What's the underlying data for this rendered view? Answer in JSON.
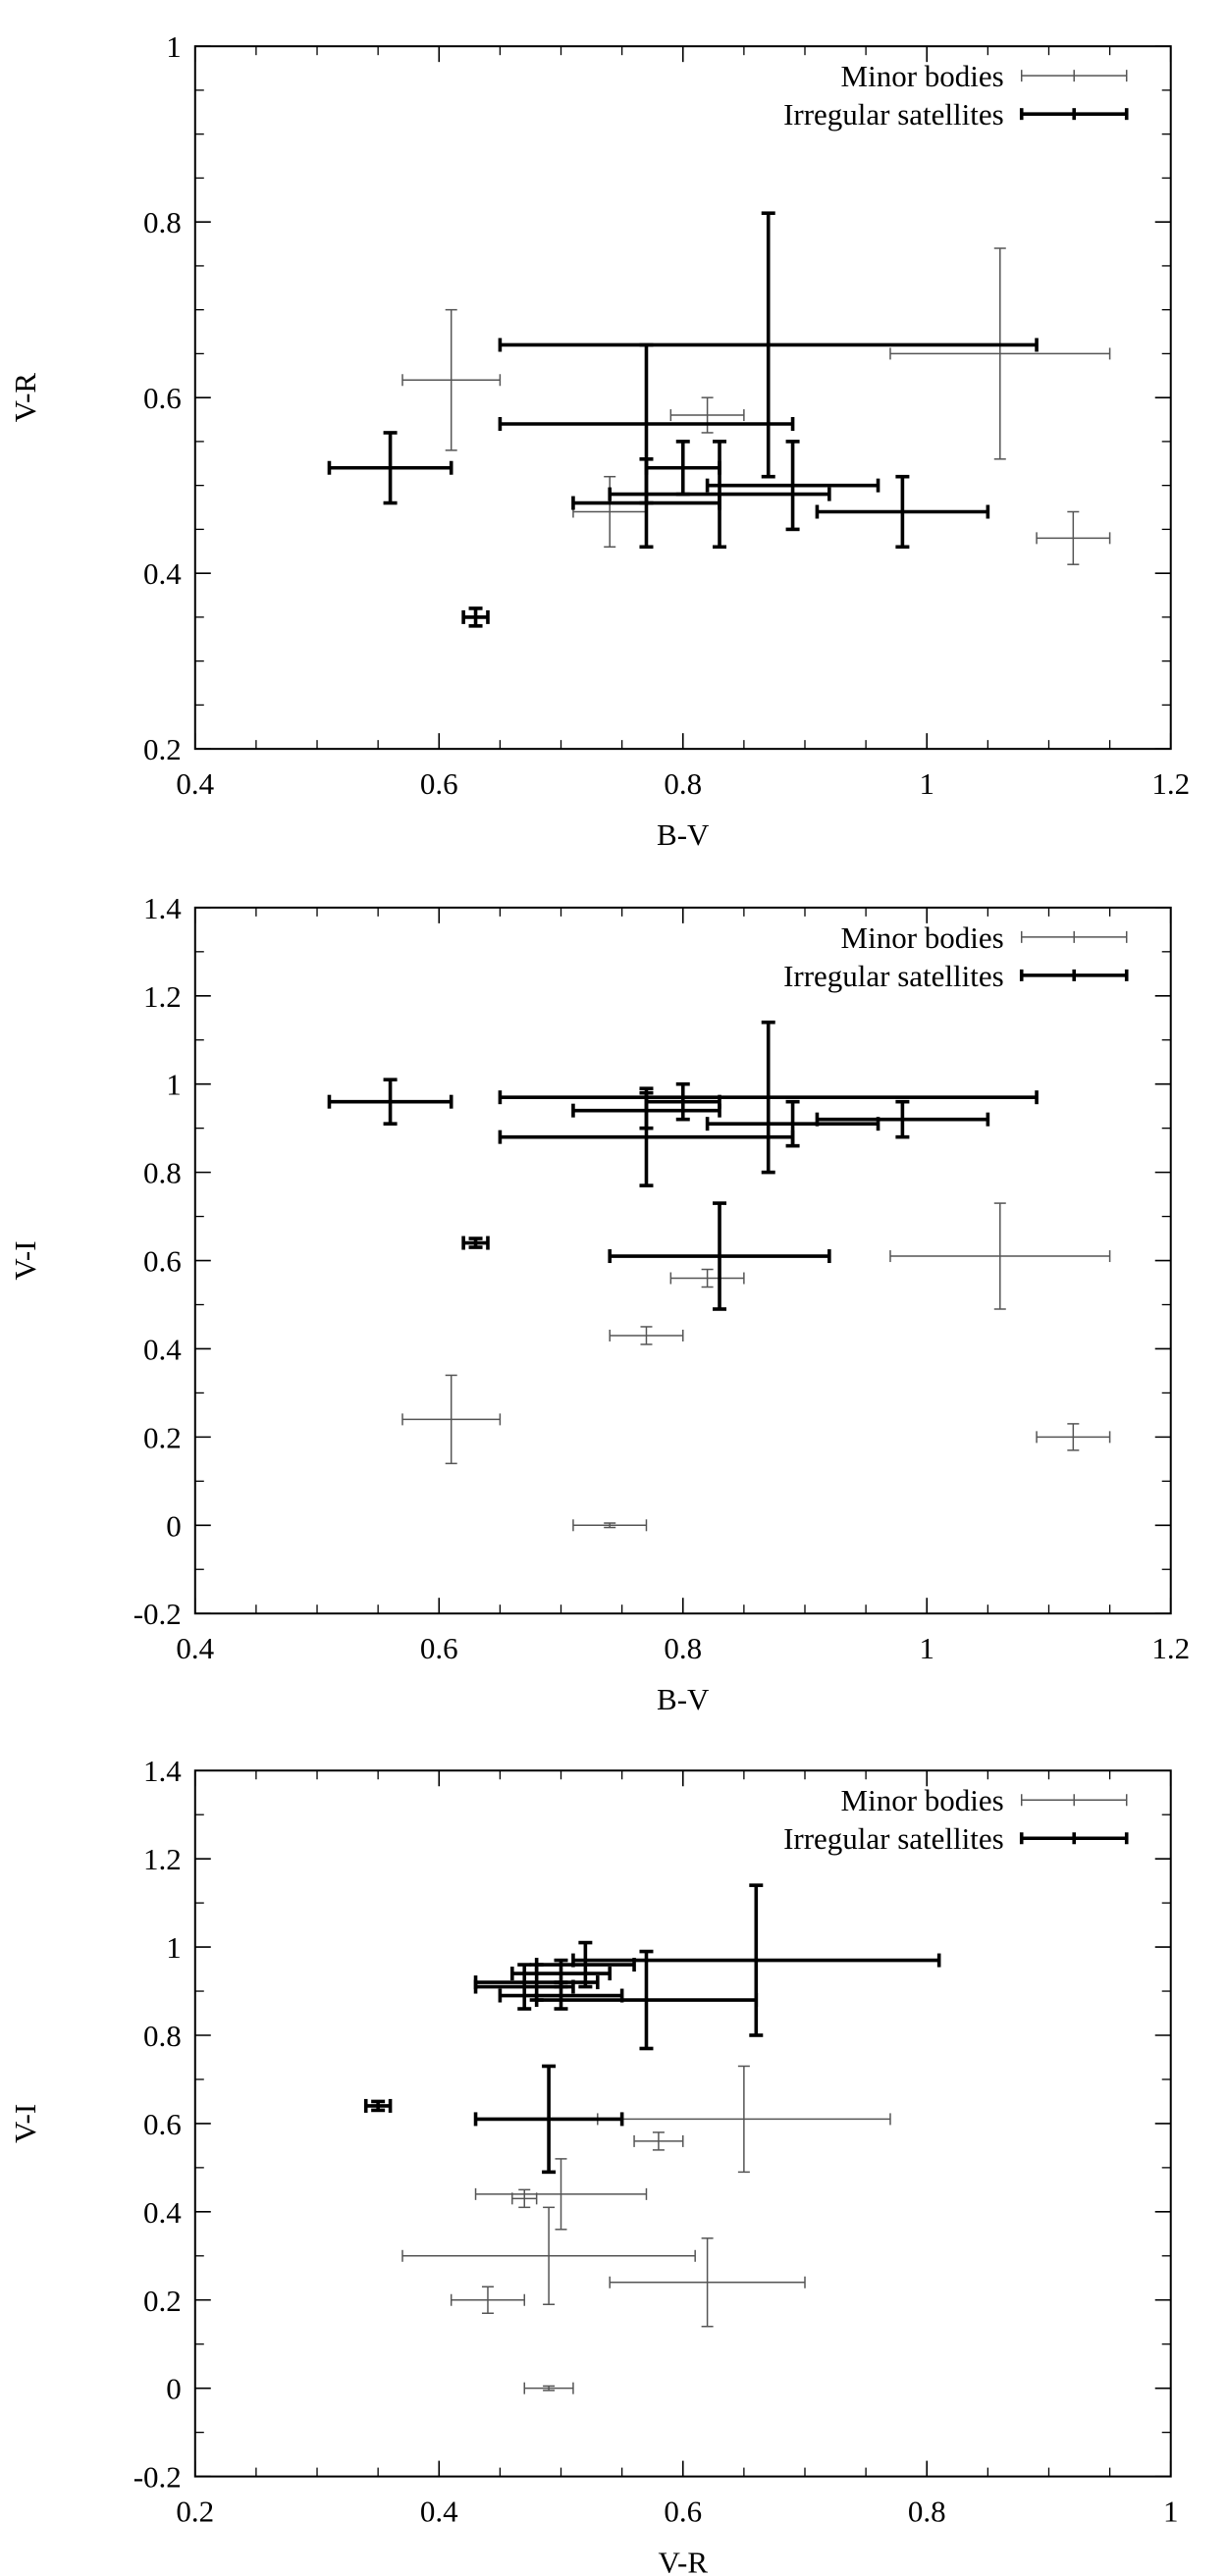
{
  "chart_data": [
    {
      "type": "scatter",
      "xlabel": "B-V",
      "ylabel": "V-R",
      "xlim": [
        0.4,
        1.2
      ],
      "ylim": [
        0.2,
        1.0
      ],
      "xticks": [
        "0.4",
        "0.6",
        "0.8",
        "1",
        "1.2"
      ],
      "yticks": [
        "0.2",
        "0.4",
        "0.6",
        "0.8",
        "1"
      ],
      "legend_position": "top-right",
      "series": [
        {
          "name": "Minor bodies",
          "color": "#555555",
          "points": [
            {
              "x": 0.61,
              "y": 0.62,
              "xerr": 0.04,
              "yerr": 0.08
            },
            {
              "x": 0.82,
              "y": 0.58,
              "xerr": 0.03,
              "yerr": 0.02
            },
            {
              "x": 0.74,
              "y": 0.47,
              "xerr": 0.03,
              "yerr": 0.04
            },
            {
              "x": 1.06,
              "y": 0.65,
              "xerr": 0.09,
              "yerr": 0.12
            },
            {
              "x": 1.12,
              "y": 0.44,
              "xerr": 0.03,
              "yerr": 0.03
            }
          ]
        },
        {
          "name": "Irregular satellites",
          "color": "#000000",
          "points": [
            {
              "x": 0.56,
              "y": 0.52,
              "xerr": 0.05,
              "yerr": 0.04
            },
            {
              "x": 0.63,
              "y": 0.35,
              "xerr": 0.01,
              "yerr": 0.01
            },
            {
              "x": 0.87,
              "y": 0.66,
              "xerr": 0.22,
              "yerr": 0.15
            },
            {
              "x": 0.77,
              "y": 0.57,
              "xerr": 0.12,
              "yerr": 0.09
            },
            {
              "x": 0.8,
              "y": 0.52,
              "xerr": 0.03,
              "yerr": 0.03
            },
            {
              "x": 0.89,
              "y": 0.5,
              "xerr": 0.07,
              "yerr": 0.05
            },
            {
              "x": 0.83,
              "y": 0.49,
              "xerr": 0.09,
              "yerr": 0.06
            },
            {
              "x": 0.77,
              "y": 0.48,
              "xerr": 0.06,
              "yerr": 0.05
            },
            {
              "x": 0.98,
              "y": 0.47,
              "xerr": 0.07,
              "yerr": 0.04
            }
          ]
        }
      ]
    },
    {
      "type": "scatter",
      "xlabel": "B-V",
      "ylabel": "V-I",
      "xlim": [
        0.4,
        1.2
      ],
      "ylim": [
        -0.2,
        1.4
      ],
      "xticks": [
        "0.4",
        "0.6",
        "0.8",
        "1",
        "1.2"
      ],
      "yticks": [
        "-0.2",
        "0",
        "0.2",
        "0.4",
        "0.6",
        "0.8",
        "1",
        "1.2",
        "1.4"
      ],
      "legend_position": "top-right",
      "series": [
        {
          "name": "Minor bodies",
          "color": "#555555",
          "points": [
            {
              "x": 0.61,
              "y": 0.24,
              "xerr": 0.04,
              "yerr": 0.1
            },
            {
              "x": 0.74,
              "y": 0.0,
              "xerr": 0.03,
              "yerr": 0.005
            },
            {
              "x": 0.77,
              "y": 0.43,
              "xerr": 0.03,
              "yerr": 0.02
            },
            {
              "x": 0.82,
              "y": 0.56,
              "xerr": 0.03,
              "yerr": 0.02
            },
            {
              "x": 1.06,
              "y": 0.61,
              "xerr": 0.09,
              "yerr": 0.12
            },
            {
              "x": 1.12,
              "y": 0.2,
              "xerr": 0.03,
              "yerr": 0.03
            }
          ]
        },
        {
          "name": "Irregular satellites",
          "color": "#000000",
          "points": [
            {
              "x": 0.56,
              "y": 0.96,
              "xerr": 0.05,
              "yerr": 0.05
            },
            {
              "x": 0.63,
              "y": 0.64,
              "xerr": 0.01,
              "yerr": 0.01
            },
            {
              "x": 0.87,
              "y": 0.97,
              "xerr": 0.22,
              "yerr": 0.17
            },
            {
              "x": 0.77,
              "y": 0.88,
              "xerr": 0.12,
              "yerr": 0.11
            },
            {
              "x": 0.8,
              "y": 0.96,
              "xerr": 0.03,
              "yerr": 0.04
            },
            {
              "x": 0.77,
              "y": 0.94,
              "xerr": 0.06,
              "yerr": 0.04
            },
            {
              "x": 0.89,
              "y": 0.91,
              "xerr": 0.07,
              "yerr": 0.05
            },
            {
              "x": 0.98,
              "y": 0.92,
              "xerr": 0.07,
              "yerr": 0.04
            },
            {
              "x": 0.83,
              "y": 0.61,
              "xerr": 0.09,
              "yerr": 0.12
            }
          ]
        }
      ]
    },
    {
      "type": "scatter",
      "xlabel": "V-R",
      "ylabel": "V-I",
      "xlim": [
        0.2,
        1.0
      ],
      "ylim": [
        -0.2,
        1.4
      ],
      "xticks": [
        "0.2",
        "0.4",
        "0.6",
        "0.8",
        "1"
      ],
      "yticks": [
        "-0.2",
        "0",
        "0.2",
        "0.4",
        "0.6",
        "0.8",
        "1",
        "1.2",
        "1.4"
      ],
      "legend_position": "top-right",
      "series": [
        {
          "name": "Minor bodies",
          "color": "#555555",
          "points": [
            {
              "x": 0.62,
              "y": 0.24,
              "xerr": 0.08,
              "yerr": 0.1
            },
            {
              "x": 0.49,
              "y": 0.3,
              "xerr": 0.12,
              "yerr": 0.11
            },
            {
              "x": 0.44,
              "y": 0.2,
              "xerr": 0.03,
              "yerr": 0.03
            },
            {
              "x": 0.49,
              "y": 0.0,
              "xerr": 0.02,
              "yerr": 0.005
            },
            {
              "x": 0.47,
              "y": 0.43,
              "xerr": 0.01,
              "yerr": 0.02
            },
            {
              "x": 0.5,
              "y": 0.44,
              "xerr": 0.07,
              "yerr": 0.08
            },
            {
              "x": 0.58,
              "y": 0.56,
              "xerr": 0.02,
              "yerr": 0.02
            },
            {
              "x": 0.65,
              "y": 0.61,
              "xerr": 0.12,
              "yerr": 0.12
            }
          ]
        },
        {
          "name": "Irregular satellites",
          "color": "#000000",
          "points": [
            {
              "x": 0.35,
              "y": 0.64,
              "xerr": 0.01,
              "yerr": 0.01
            },
            {
              "x": 0.49,
              "y": 0.61,
              "xerr": 0.06,
              "yerr": 0.12
            },
            {
              "x": 0.66,
              "y": 0.97,
              "xerr": 0.15,
              "yerr": 0.17
            },
            {
              "x": 0.57,
              "y": 0.88,
              "xerr": 0.09,
              "yerr": 0.11
            },
            {
              "x": 0.52,
              "y": 0.96,
              "xerr": 0.04,
              "yerr": 0.05
            },
            {
              "x": 0.5,
              "y": 0.94,
              "xerr": 0.04,
              "yerr": 0.03
            },
            {
              "x": 0.48,
              "y": 0.92,
              "xerr": 0.05,
              "yerr": 0.04
            },
            {
              "x": 0.47,
              "y": 0.91,
              "xerr": 0.04,
              "yerr": 0.05
            },
            {
              "x": 0.5,
              "y": 0.89,
              "xerr": 0.05,
              "yerr": 0.03
            }
          ]
        }
      ]
    }
  ]
}
